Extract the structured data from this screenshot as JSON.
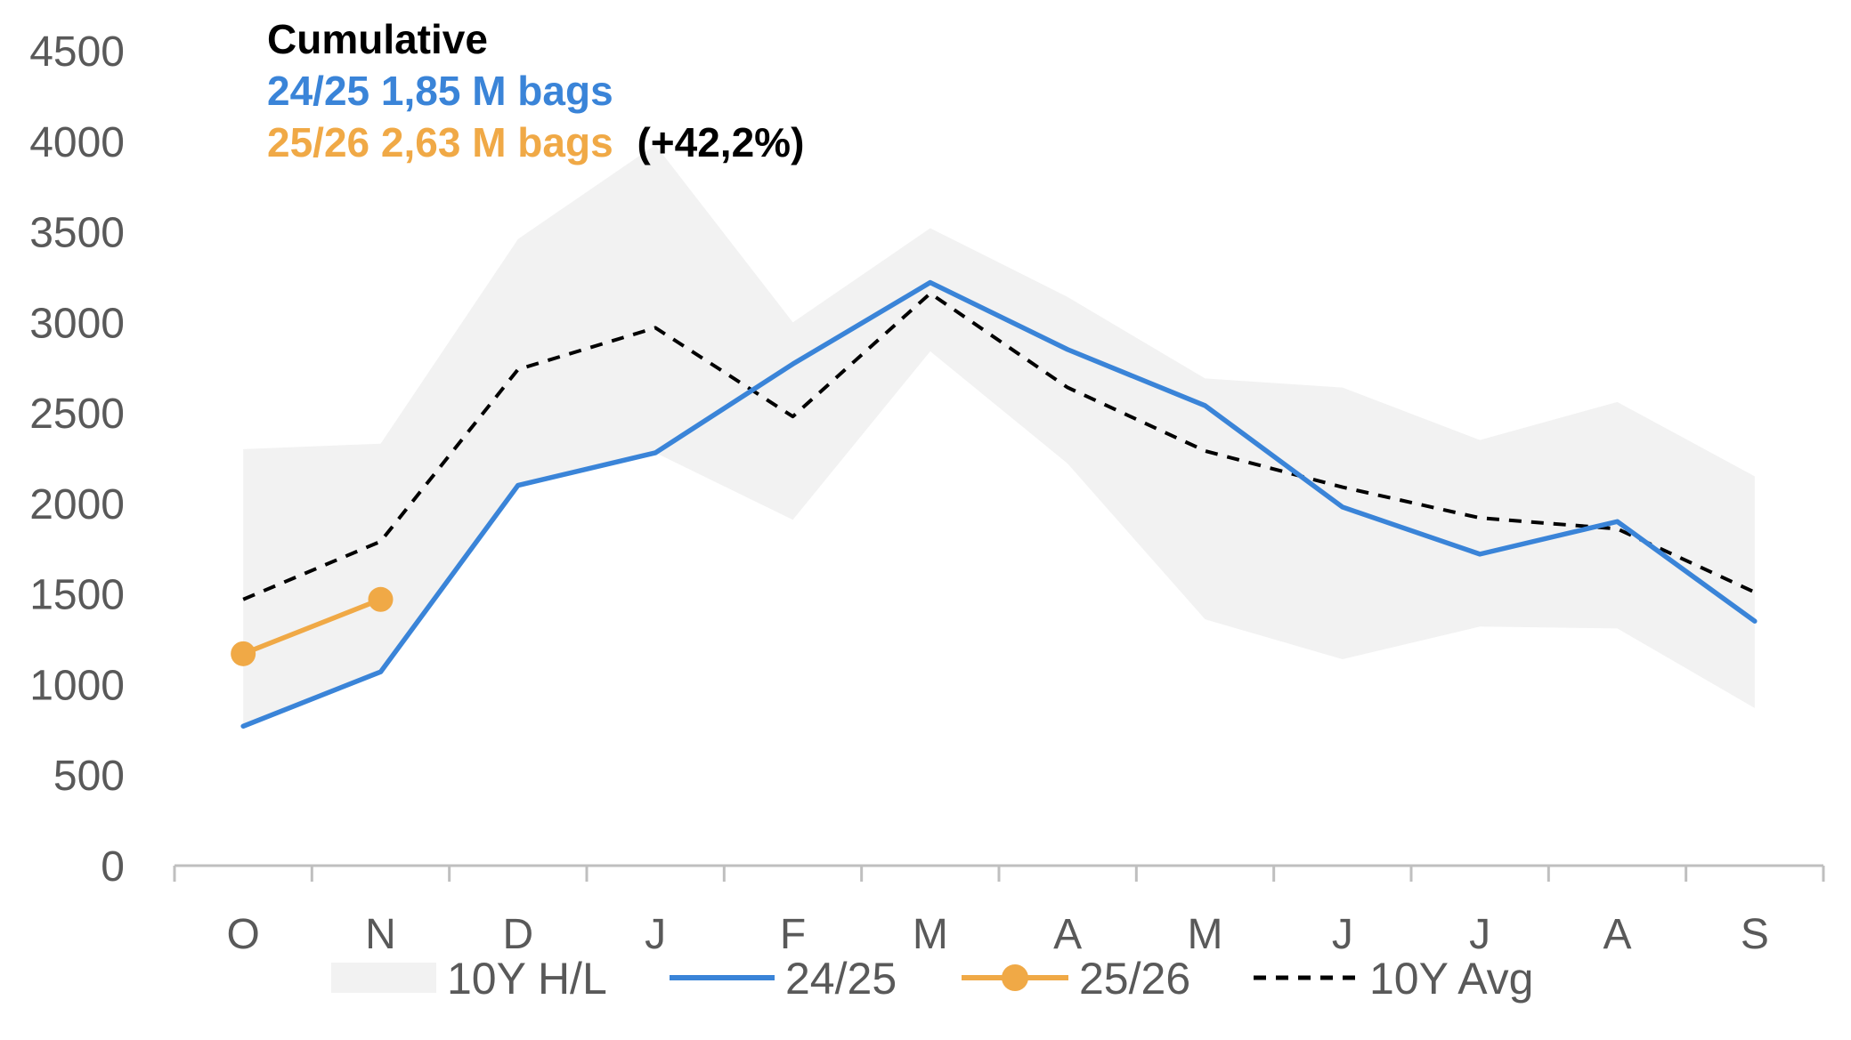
{
  "chart_data": {
    "type": "line",
    "title": "Cumulative",
    "subtitle": {
      "line1": "24/25 1,85 M bags",
      "line2": "25/26 2,63 M bags",
      "line2_change": "(+42,2%)"
    },
    "categories": [
      "O",
      "N",
      "D",
      "J",
      "F",
      "M",
      "A",
      "M",
      "J",
      "J",
      "A",
      "S"
    ],
    "ylim": [
      0,
      4500
    ],
    "yticks": [
      "0",
      "500",
      "1000",
      "1500",
      "2000",
      "2500",
      "3000",
      "3500",
      "4000",
      "4500"
    ],
    "grid": false,
    "legend_position": "bottom",
    "band": {
      "name": "10Y H/L",
      "color": "#f2f2f2",
      "high": [
        2300,
        2330,
        3460,
        3980,
        3000,
        3520,
        3140,
        2690,
        2640,
        2350,
        2560,
        2150
      ],
      "low": [
        770,
        1070,
        2090,
        2280,
        1910,
        2840,
        2220,
        1360,
        1140,
        1320,
        1310,
        870
      ]
    },
    "series": [
      {
        "name": "24/25",
        "color": "#3a84d8",
        "values": [
          770,
          1070,
          2100,
          2280,
          2770,
          3220,
          2850,
          2540,
          1980,
          1720,
          1900,
          1350
        ]
      },
      {
        "name": "25/26",
        "color": "#f0a946",
        "values": [
          1170,
          1470,
          null,
          null,
          null,
          null,
          null,
          null,
          null,
          null,
          null,
          null
        ]
      },
      {
        "name": "10Y Avg",
        "color": "#000000",
        "dashed": true,
        "values": [
          1470,
          1790,
          2740,
          2970,
          2480,
          3160,
          2640,
          2290,
          2090,
          1920,
          1860,
          1510
        ]
      }
    ],
    "colors": {
      "title": "#000000",
      "axis": "#bfbfbf",
      "tick_text": "#595959"
    }
  }
}
